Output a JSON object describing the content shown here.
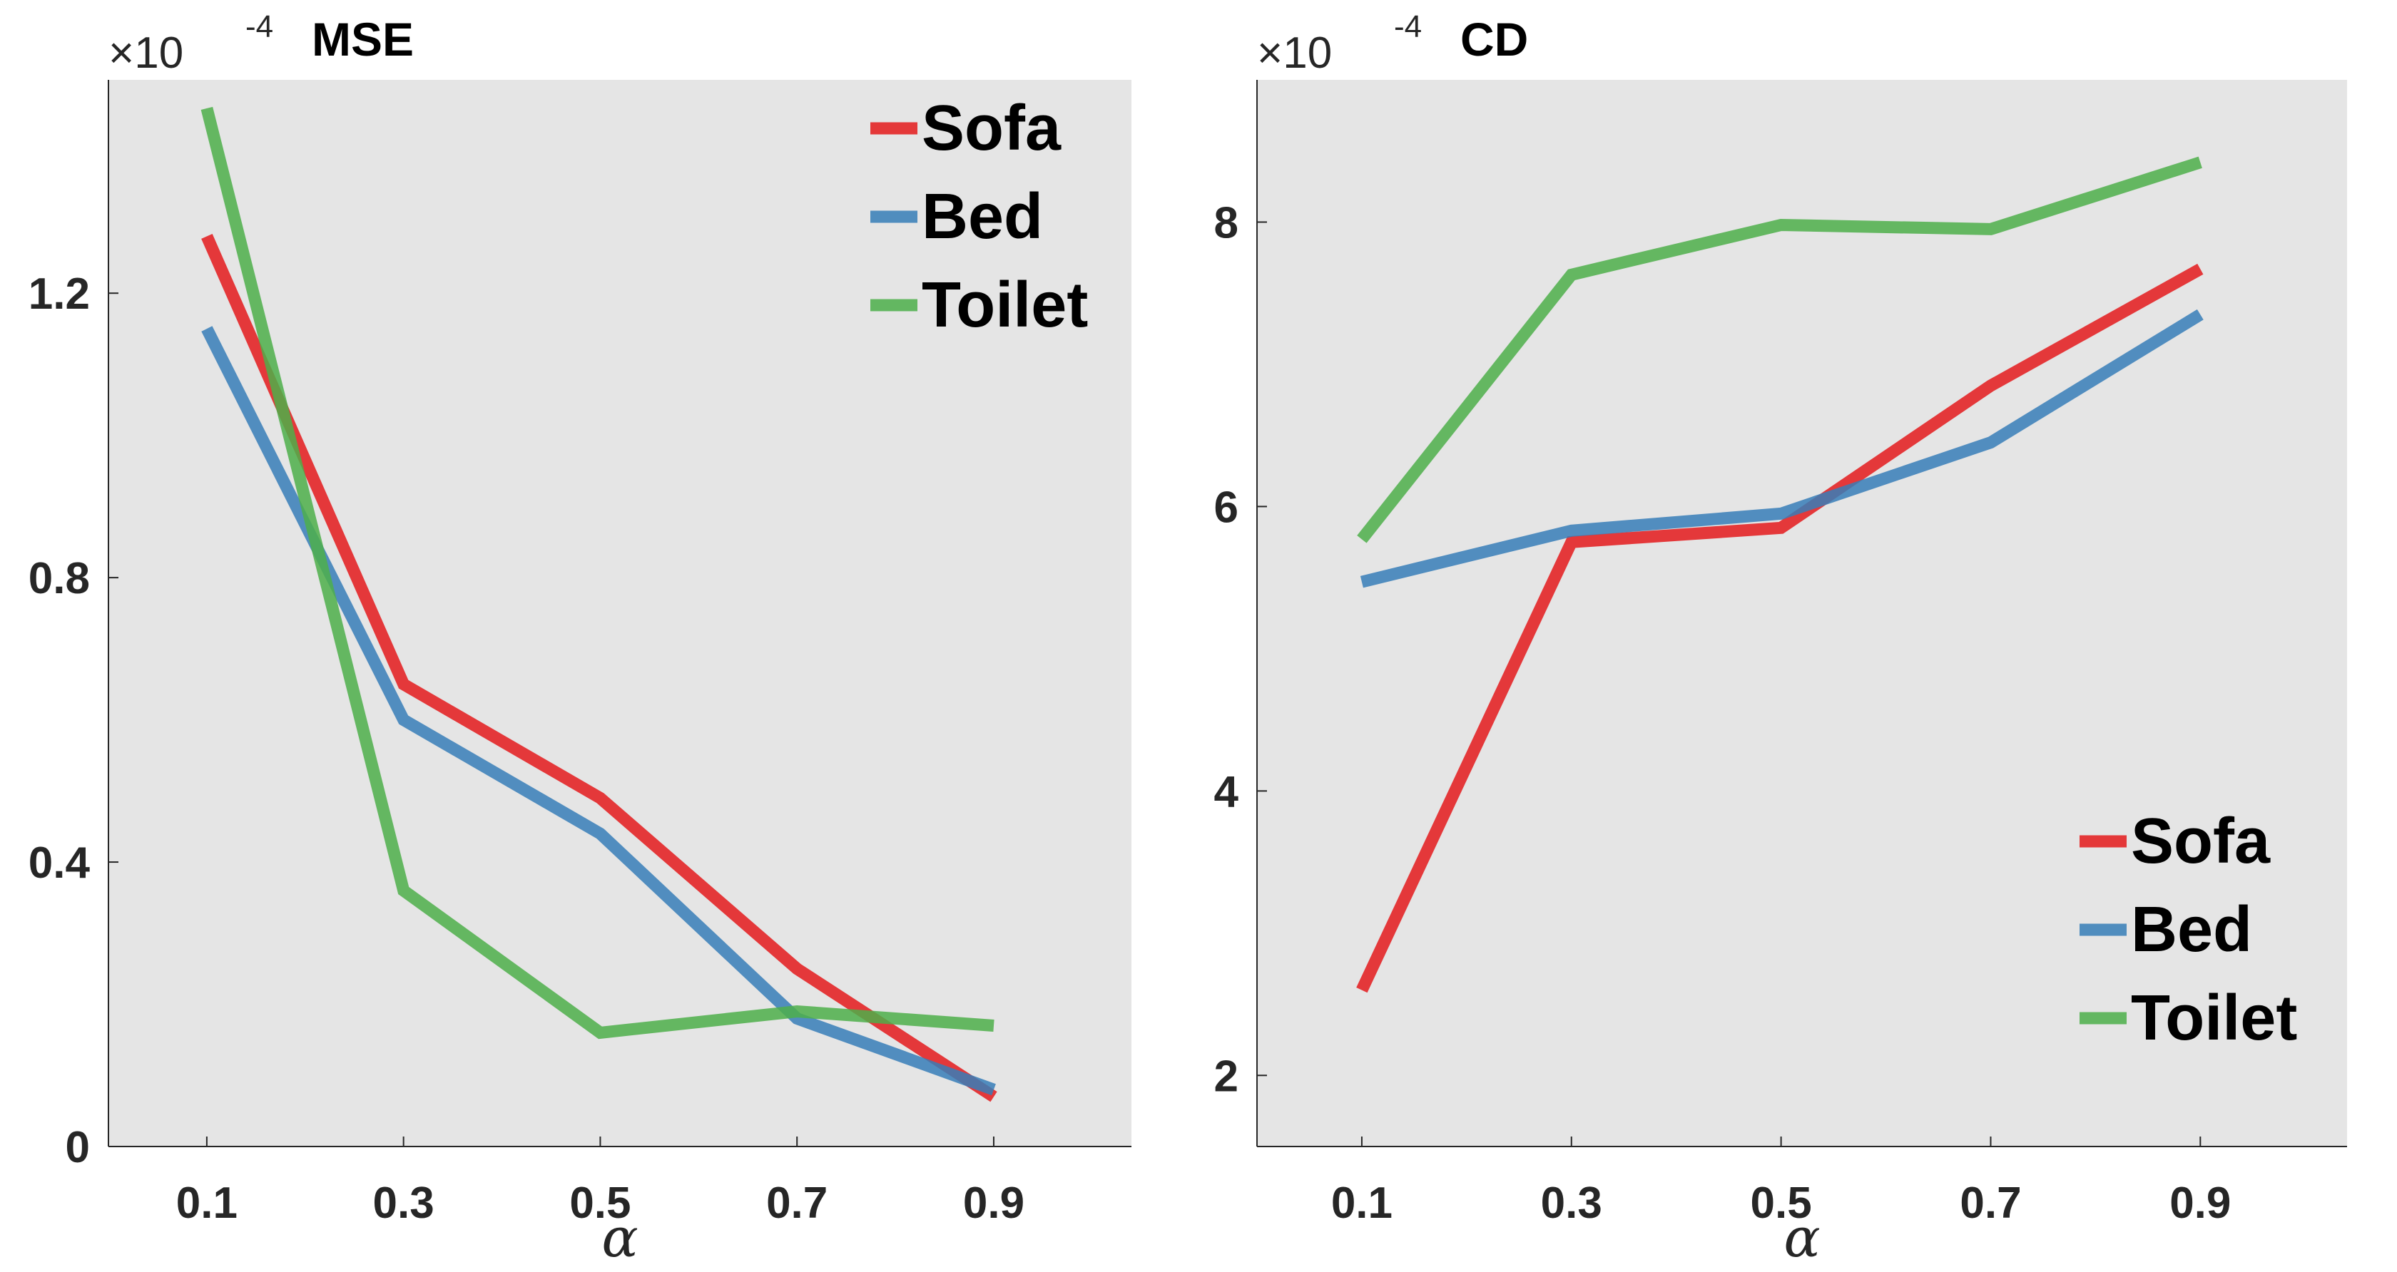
{
  "chart_data": [
    {
      "type": "line",
      "title": "MSE",
      "scale_factor": "×10",
      "scale_exponent": "-4",
      "xlabel": "α",
      "ylabel": "",
      "x": [
        0.1,
        0.3,
        0.5,
        0.7,
        0.9
      ],
      "x_tick_labels": [
        "0.1",
        "0.3",
        "0.5",
        "0.7",
        "0.9"
      ],
      "xlim": [
        0.0,
        1.04
      ],
      "y_ticks": [
        0,
        0.4,
        0.8,
        1.2
      ],
      "y_tick_labels": [
        "0",
        "0.4",
        "0.8",
        "1.2"
      ],
      "ylim": [
        0,
        1.5
      ],
      "grid": false,
      "legend_position": "top-right",
      "series": [
        {
          "name": "Sofa",
          "color": "#e41a1c",
          "values": [
            1.28,
            0.65,
            0.49,
            0.25,
            0.07
          ]
        },
        {
          "name": "Bed",
          "color": "#377eb8",
          "values": [
            1.15,
            0.6,
            0.44,
            0.18,
            0.08
          ]
        },
        {
          "name": "Toilet",
          "color": "#4daf4a",
          "values": [
            1.46,
            0.36,
            0.16,
            0.19,
            0.17
          ]
        }
      ]
    },
    {
      "type": "line",
      "title": "CD",
      "scale_factor": "×10",
      "scale_exponent": "-4",
      "xlabel": "α",
      "ylabel": "",
      "x": [
        0.1,
        0.3,
        0.5,
        0.7,
        0.9
      ],
      "x_tick_labels": [
        "0.1",
        "0.3",
        "0.5",
        "0.7",
        "0.9"
      ],
      "xlim": [
        0.0,
        1.04
      ],
      "y_ticks": [
        2,
        4,
        6,
        8
      ],
      "y_tick_labels": [
        "2",
        "4",
        "6",
        "8"
      ],
      "ylim": [
        1.5,
        9.0
      ],
      "grid": false,
      "legend_position": "bottom-right",
      "series": [
        {
          "name": "Sofa",
          "color": "#e41a1c",
          "values": [
            2.6,
            5.75,
            5.85,
            6.85,
            7.67
          ]
        },
        {
          "name": "Bed",
          "color": "#377eb8",
          "values": [
            5.47,
            5.83,
            5.95,
            6.45,
            7.35
          ]
        },
        {
          "name": "Toilet",
          "color": "#4daf4a",
          "values": [
            5.77,
            7.63,
            7.98,
            7.95,
            8.42
          ]
        }
      ]
    }
  ]
}
